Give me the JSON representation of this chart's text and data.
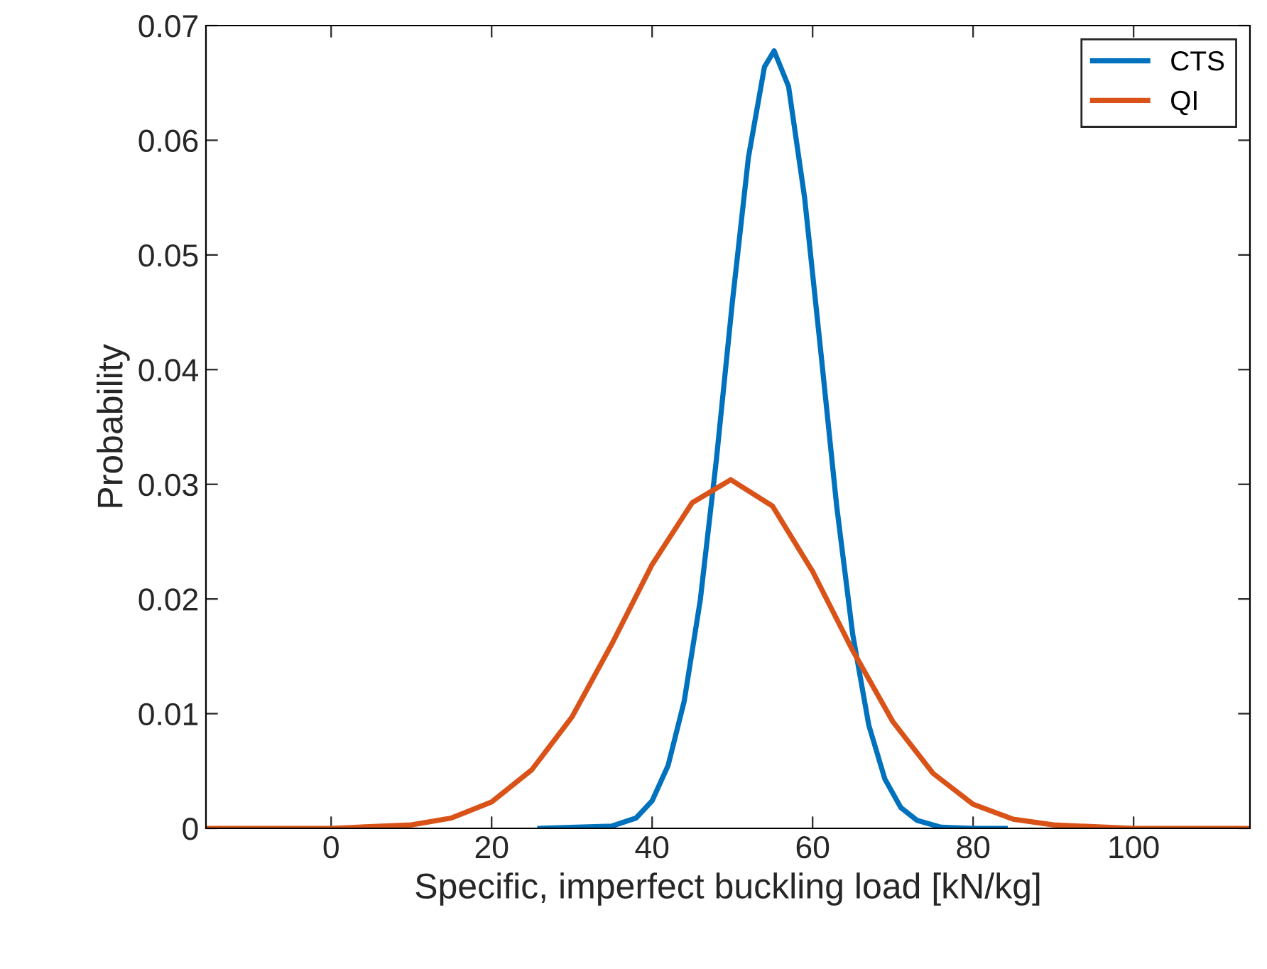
{
  "chart_data": {
    "type": "line",
    "xlabel": "Specific, imperfect buckling load [kN/kg]",
    "ylabel": "Probability",
    "series": [
      {
        "name": "CTS",
        "color": "#0072bd",
        "x": [
          26,
          35,
          38,
          40,
          42,
          44,
          46,
          48,
          50,
          52,
          54,
          55.2,
          57,
          59,
          61,
          63,
          65,
          67,
          69,
          71,
          73,
          76,
          80,
          84
        ],
        "values": [
          0,
          0.0002,
          0.0009,
          0.0024,
          0.0055,
          0.0111,
          0.0199,
          0.0321,
          0.0459,
          0.0585,
          0.0664,
          0.0678,
          0.0647,
          0.055,
          0.0417,
          0.0281,
          0.0169,
          0.009,
          0.0043,
          0.0018,
          0.0007,
          0.0001,
          0,
          0
        ]
      },
      {
        "name": "QI",
        "color": "#d95319",
        "x": [
          -15.6,
          0,
          10,
          15,
          20,
          25,
          30,
          35,
          40,
          45,
          49.8,
          55,
          60,
          65,
          70,
          75,
          80,
          85,
          90,
          100,
          114.5
        ],
        "values": [
          0,
          0,
          0.0003,
          0.0009,
          0.0023,
          0.0051,
          0.0097,
          0.0161,
          0.023,
          0.0284,
          0.0304,
          0.0281,
          0.0224,
          0.0155,
          0.0093,
          0.0048,
          0.0021,
          0.0008,
          0.0003,
          0,
          0
        ]
      }
    ],
    "xlim": [
      -15.6,
      114.5
    ],
    "xticks": [
      0,
      20,
      40,
      60,
      80,
      100
    ],
    "ylim": [
      0,
      0.07
    ],
    "yticks": [
      0,
      0.01,
      0.02,
      0.03,
      0.04,
      0.05,
      0.06,
      0.07
    ],
    "grid": false,
    "legend": "top right",
    "marker": "none",
    "line_style": "solid"
  }
}
